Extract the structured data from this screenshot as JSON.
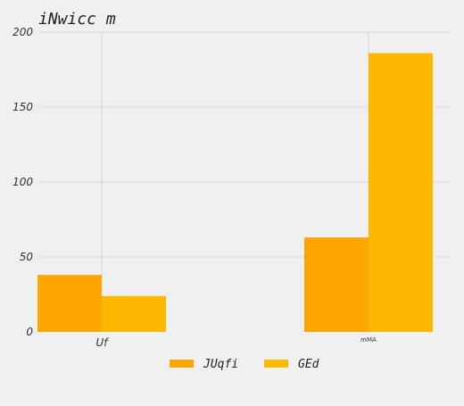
{
  "chart_data": {
    "type": "bar",
    "title": "iNwicc m",
    "xlabel": "",
    "ylabel": "",
    "categories": [
      "Uf",
      "mMA"
    ],
    "series": [
      {
        "name": "JUqfi",
        "values": [
          38,
          63
        ],
        "color": "#ffa500"
      },
      {
        "name": "GEd",
        "values": [
          24,
          186
        ],
        "color": "#ffb800"
      }
    ],
    "ylim": [
      0,
      200
    ],
    "yticks": [
      0,
      50,
      100,
      150,
      200
    ],
    "grid": true,
    "legend_position": "bottom-center"
  }
}
